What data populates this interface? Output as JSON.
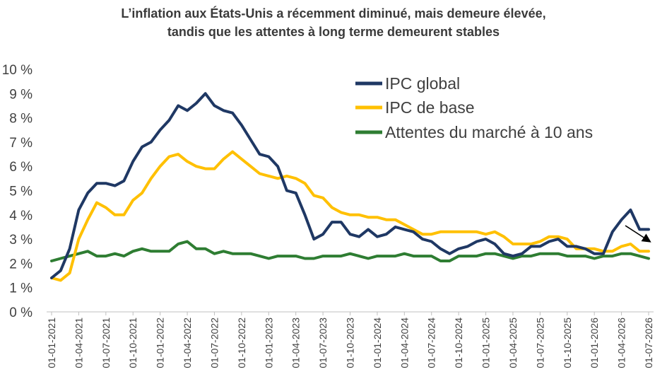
{
  "chart_data": {
    "type": "line",
    "title_line1": "L’inflation aux États-Unis a récemment diminué, mais demeure élevée,",
    "title_line2": "tandis que les attentes à long terme demeurent stables",
    "xlabel": "",
    "ylabel": "",
    "ylim": [
      0,
      10
    ],
    "y_ticks": [
      "0 %",
      "1 %",
      "2 %",
      "3 %",
      "4 %",
      "5 %",
      "6 %",
      "7 %",
      "8 %",
      "9 %",
      "10 %"
    ],
    "x_start": "2021-01",
    "x_end": "2026-07",
    "x_ticks": [
      "01-01-2021",
      "01-04-2021",
      "01-07-2021",
      "01-10-2021",
      "01-01-2022",
      "01-04-2022",
      "01-07-2022",
      "01-10-2022",
      "01-01-2023",
      "01-04-2023",
      "01-07-2023",
      "01-10-2023",
      "01-01-2024",
      "01-04-2024",
      "01-07-2024",
      "01-10-2024",
      "01-01-2025",
      "01-04-2025",
      "01-07-2025",
      "01-10-2025",
      "01-01-2026",
      "01-04-2026",
      "01-07-2026"
    ],
    "grid": false,
    "legend_position": "top-right",
    "annotation": "downward arrow near end of series",
    "series": [
      {
        "name": "IPC global",
        "color": "#1f3864",
        "values": [
          1.4,
          1.7,
          2.6,
          4.2,
          4.9,
          5.3,
          5.3,
          5.2,
          5.4,
          6.2,
          6.8,
          7.0,
          7.5,
          7.9,
          8.5,
          8.3,
          8.6,
          9.0,
          8.5,
          8.3,
          8.2,
          7.7,
          7.1,
          6.5,
          6.4,
          6.0,
          5.0,
          4.9,
          4.0,
          3.0,
          3.2,
          3.7,
          3.7,
          3.2,
          3.1,
          3.4,
          3.1,
          3.2,
          3.5,
          3.4,
          3.3,
          3.0,
          2.9,
          2.6,
          2.4,
          2.6,
          2.7,
          2.9,
          3.0,
          2.8,
          2.4,
          2.3,
          2.4,
          2.7,
          2.7,
          2.9,
          3.0,
          2.7,
          2.7,
          2.6,
          2.4,
          2.4,
          3.3,
          3.8,
          4.2,
          3.4,
          3.4
        ]
      },
      {
        "name": "IPC de base",
        "color": "#ffc000",
        "values": [
          1.4,
          1.3,
          1.6,
          3.0,
          3.8,
          4.5,
          4.3,
          4.0,
          4.0,
          4.6,
          4.9,
          5.5,
          6.0,
          6.4,
          6.5,
          6.2,
          6.0,
          5.9,
          5.9,
          6.3,
          6.6,
          6.3,
          6.0,
          5.7,
          5.6,
          5.5,
          5.6,
          5.5,
          5.3,
          4.8,
          4.7,
          4.3,
          4.1,
          4.0,
          4.0,
          3.9,
          3.9,
          3.8,
          3.8,
          3.6,
          3.4,
          3.2,
          3.2,
          3.3,
          3.3,
          3.3,
          3.3,
          3.3,
          3.2,
          3.3,
          3.1,
          2.8,
          2.8,
          2.8,
          2.9,
          3.1,
          3.1,
          3.0,
          2.6,
          2.6,
          2.6,
          2.5,
          2.5,
          2.7,
          2.8,
          2.5,
          2.5
        ]
      },
      {
        "name": "Attentes du marché à 10 ans",
        "color": "#2e7d32",
        "values": [
          2.1,
          2.2,
          2.3,
          2.4,
          2.5,
          2.3,
          2.3,
          2.4,
          2.3,
          2.5,
          2.6,
          2.5,
          2.5,
          2.5,
          2.8,
          2.9,
          2.6,
          2.6,
          2.4,
          2.5,
          2.4,
          2.4,
          2.4,
          2.3,
          2.2,
          2.3,
          2.3,
          2.3,
          2.2,
          2.2,
          2.3,
          2.3,
          2.3,
          2.4,
          2.3,
          2.2,
          2.3,
          2.3,
          2.3,
          2.4,
          2.3,
          2.3,
          2.3,
          2.1,
          2.1,
          2.3,
          2.3,
          2.3,
          2.4,
          2.4,
          2.3,
          2.2,
          2.3,
          2.3,
          2.4,
          2.4,
          2.4,
          2.3,
          2.3,
          2.3,
          2.2,
          2.3,
          2.3,
          2.4,
          2.4,
          2.3,
          2.2
        ]
      }
    ]
  }
}
